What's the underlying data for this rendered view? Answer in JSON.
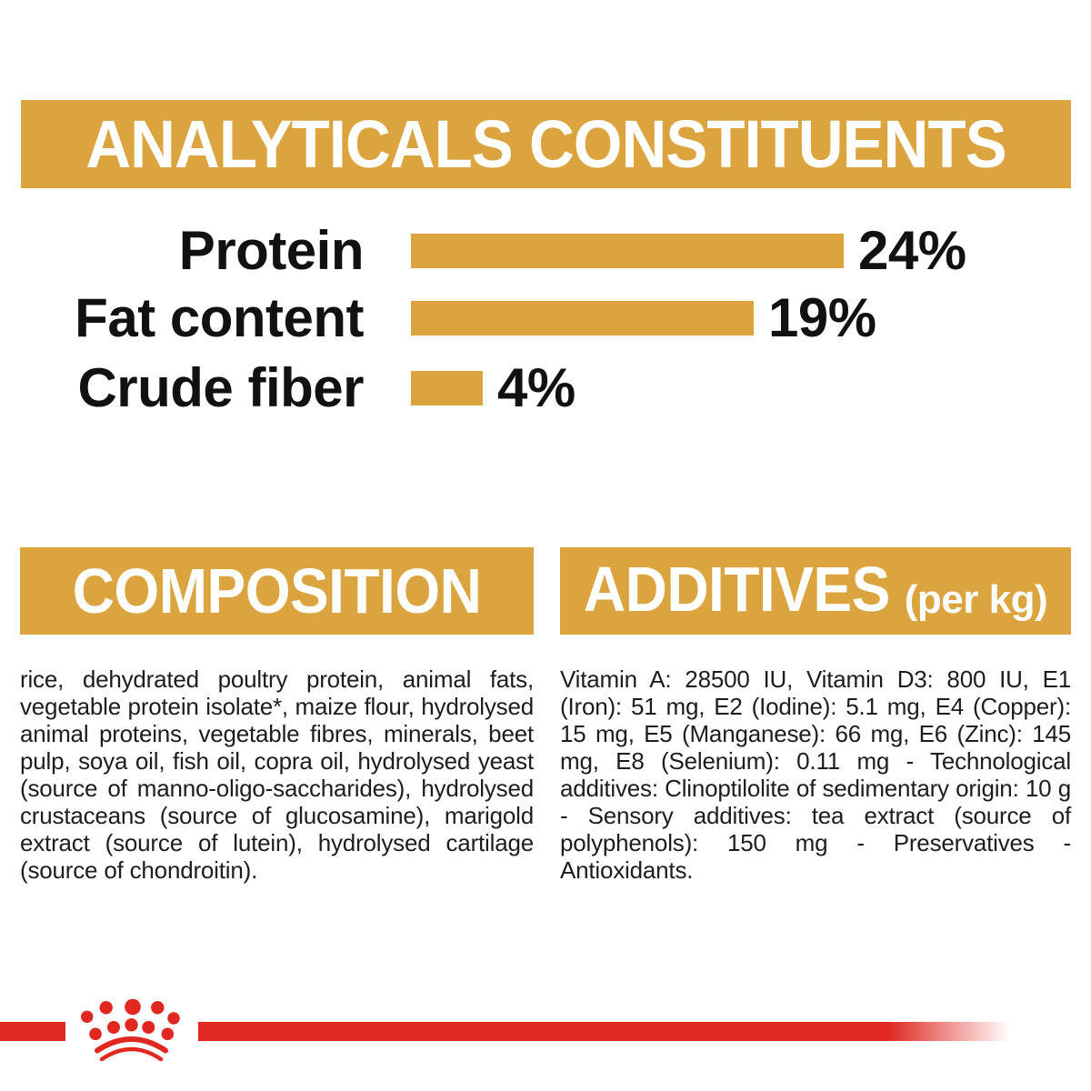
{
  "colors": {
    "gold": "#DBA43E",
    "red": "#E02720",
    "text": "#1D1D1B",
    "banner_text": "#FFFFFF"
  },
  "header": {
    "title": "ANALYTICALS CONSTITUENTS"
  },
  "chart_data": {
    "type": "bar",
    "orientation": "horizontal",
    "title": "ANALYTICALS CONSTITUENTS",
    "categories": [
      "Protein",
      "Fat content",
      "Crude fiber"
    ],
    "values": [
      24,
      19,
      4
    ],
    "value_labels": [
      "24%",
      "19%",
      "4%"
    ],
    "unit": "%",
    "xlim": [
      0,
      24
    ],
    "bar_color": "#DBA43E",
    "grid": false,
    "legend": false
  },
  "composition": {
    "title": "COMPOSITION",
    "body": "rice, dehydrated poultry protein, animal fats, vegetable protein isolate*, maize flour, hydrolysed animal proteins, vegetable fibres, minerals, beet pulp, soya oil, fish oil, copra oil, hydrolysed yeast (source of manno-oligo-saccharides), hydrolysed crustaceans (source of glucosamine), marigold extract (source of lutein), hydrolysed cartilage (source of chondroitin)."
  },
  "additives": {
    "title": "ADDITIVES",
    "title_suffix": "(per kg)",
    "body": "Vitamin A: 28500 IU, Vitamin D3: 800 IU, E1 (Iron): 51 mg, E2 (Iodine): 5.1 mg, E4 (Copper): 15 mg, E5 (Manganese): 66 mg, E6 (Zinc): 145 mg, E8 (Selenium): 0.11 mg - Technological additives: Clinoptilolite of sedimentary origin: 10 g - Sensory additives: tea extract (source of polyphenols): 150 mg - Preservatives - Antioxidants."
  },
  "footer": {
    "logo": "royal-canin-crown"
  }
}
